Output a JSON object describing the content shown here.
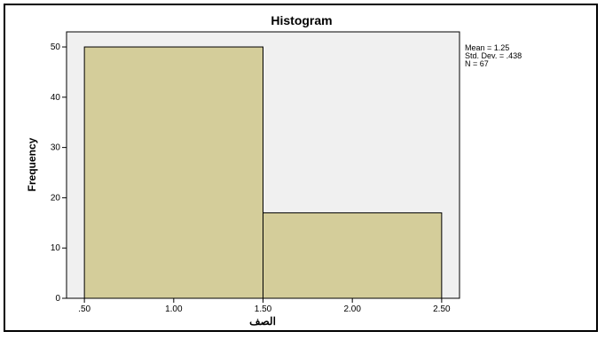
{
  "chart_data": {
    "type": "bar",
    "title": "Histogram",
    "xlabel": "الصف",
    "ylabel": "Frequency",
    "bins": [
      {
        "from": 0.5,
        "to": 1.5,
        "value": 50
      },
      {
        "from": 1.5,
        "to": 2.5,
        "value": 17
      }
    ],
    "xticks": [
      ".50",
      "1.00",
      "1.50",
      "2.00",
      "2.50"
    ],
    "xtick_values": [
      0.5,
      1.0,
      1.5,
      2.0,
      2.5
    ],
    "yticks": [
      "0",
      "10",
      "20",
      "30",
      "40",
      "50"
    ],
    "ytick_values": [
      0,
      10,
      20,
      30,
      40,
      50
    ],
    "xlim": [
      0.4,
      2.6
    ],
    "ylim": [
      0,
      53
    ],
    "grid": false,
    "stats": {
      "mean": "Mean = 1.25",
      "std": "Std. Dev. = .438",
      "n": "N = 67"
    },
    "colors": {
      "bar_fill": "#d4cd9a",
      "plot_bg": "#f0f0f0"
    }
  }
}
